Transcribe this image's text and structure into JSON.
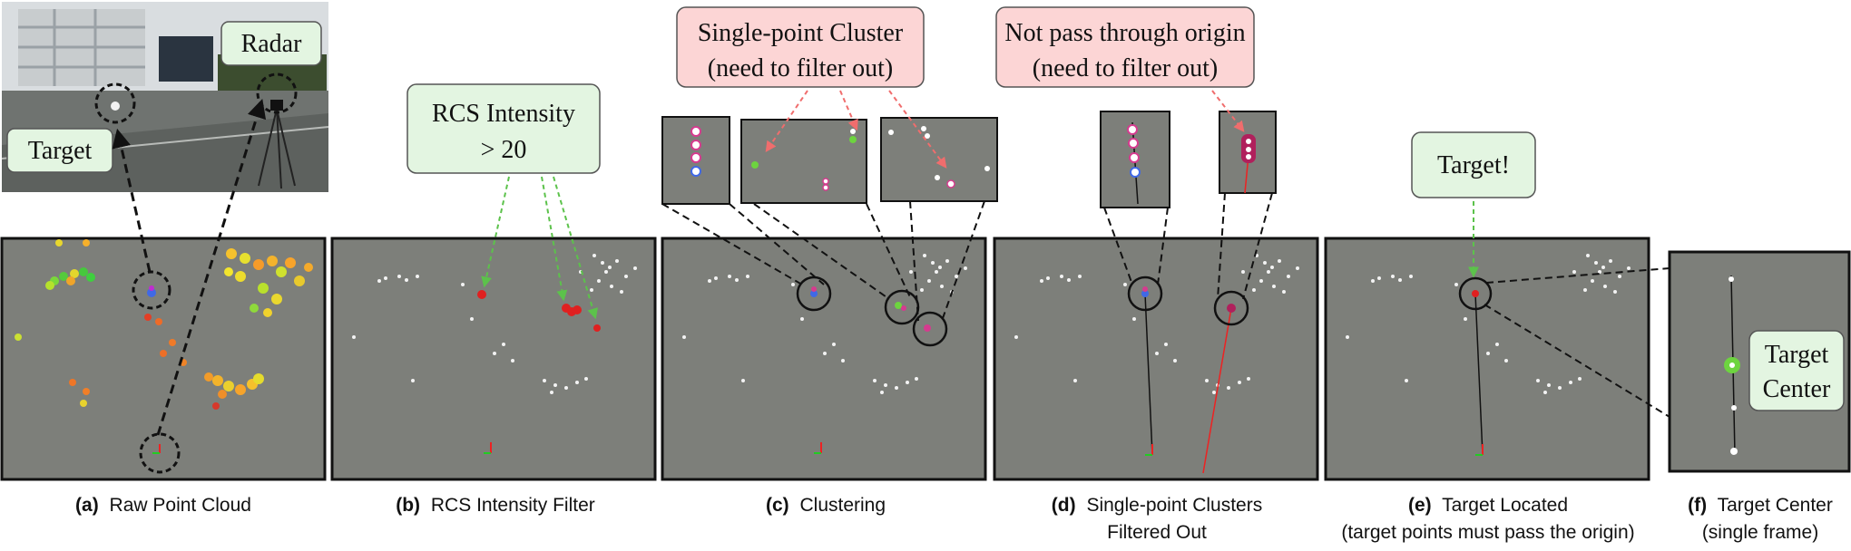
{
  "photo": {
    "radar_label": "Radar",
    "target_label": "Target"
  },
  "callouts": {
    "rcs": [
      "RCS Intensity",
      "> 20"
    ],
    "single_point": [
      "Single-point Cluster",
      "(need to filter out)"
    ],
    "origin": [
      "Not pass through origin",
      "(need to filter out)"
    ],
    "target_found": "Target!",
    "target_center": [
      "Target",
      "Center"
    ]
  },
  "captions": {
    "a": {
      "tag": "(a)",
      "lines": [
        "Raw Point Cloud"
      ]
    },
    "b": {
      "tag": "(b)",
      "lines": [
        "RCS Intensity Filter"
      ]
    },
    "c": {
      "tag": "(c)",
      "lines": [
        "Clustering"
      ]
    },
    "d": {
      "tag": "(d)",
      "lines": [
        "Single-point Clusters",
        "Filtered Out"
      ]
    },
    "e": {
      "tag": "(e)",
      "lines": [
        "Target Located",
        "(target points must pass the origin)"
      ]
    },
    "f": {
      "tag": "(f)",
      "lines": [
        "Target Center",
        "(single frame)"
      ]
    }
  },
  "colors": {
    "panel_bg": "#7d7f7a",
    "callout_green_fill": "#e3f5e1",
    "callout_red_fill": "#fcd5d5",
    "arrow_green": "#5cc24b",
    "arrow_red": "#f06d6d",
    "cluster_magenta": "#d63b8f",
    "point_red": "#e02020",
    "target_green": "#6dd43f"
  }
}
